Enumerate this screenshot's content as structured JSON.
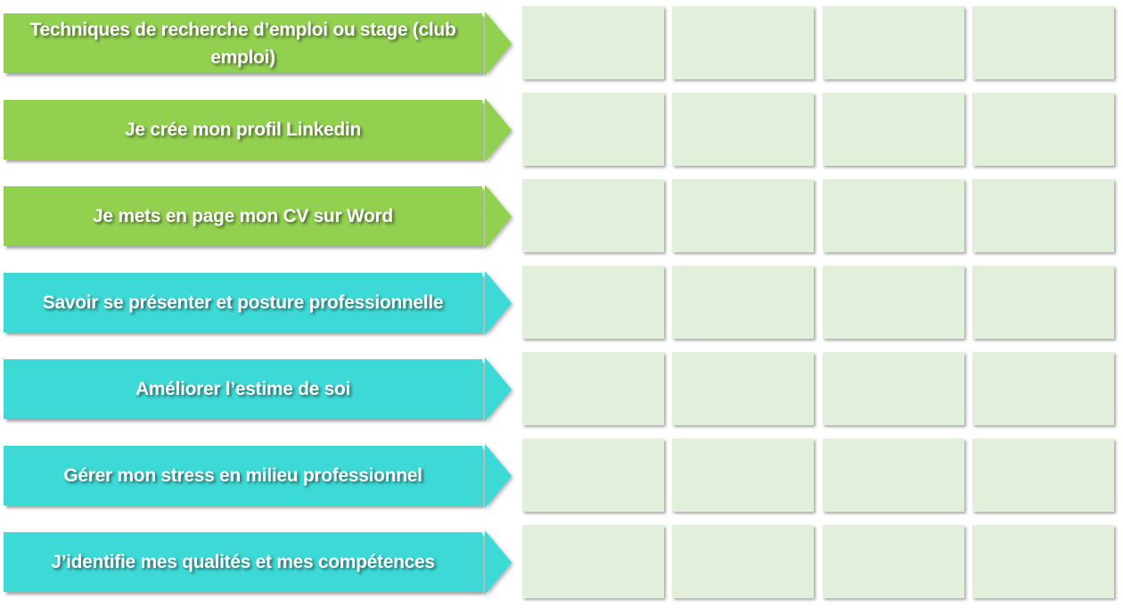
{
  "colors": {
    "green": "#92D050",
    "cyan": "#3DD9D6",
    "box": "#E2EFDA"
  },
  "rows": [
    {
      "label": "Techniques de recherche d’emploi ou stage (club emploi)",
      "color": "green"
    },
    {
      "label": "Je crée mon profil Linkedin",
      "color": "green"
    },
    {
      "label": "Je mets en page mon CV sur Word",
      "color": "green"
    },
    {
      "label": "Savoir se présenter et posture professionnelle",
      "color": "cyan"
    },
    {
      "label": "Améliorer l’estime de soi",
      "color": "cyan"
    },
    {
      "label": "Gérer mon stress en milieu professionnel",
      "color": "cyan"
    },
    {
      "label": "J’identifie mes qualités et mes compétences",
      "color": "cyan"
    }
  ]
}
